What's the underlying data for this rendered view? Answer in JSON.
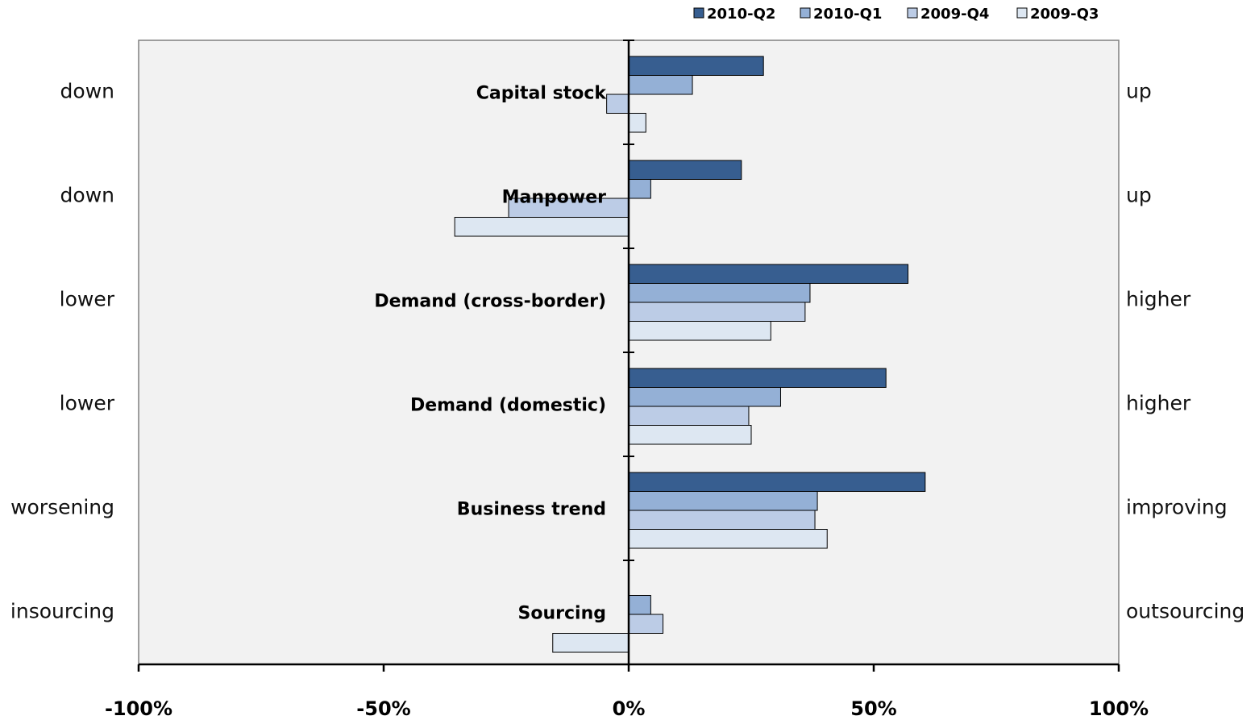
{
  "chart_data": {
    "type": "bar",
    "orientation": "horizontal",
    "categories": [
      "Capital stock",
      "Manpower",
      "Demand (cross-border)",
      "Demand (domestic)",
      "Business trend",
      "Sourcing"
    ],
    "left_labels": [
      "down",
      "down",
      "lower",
      "lower",
      "worsening",
      "insourcing"
    ],
    "right_labels": [
      "up",
      "up",
      "higher",
      "higher",
      "improving",
      "outsourcing"
    ],
    "series": [
      {
        "name": "2010-Q2",
        "color": "#375e90",
        "values": [
          27.5,
          23,
          57,
          52.5,
          60.5,
          0
        ]
      },
      {
        "name": "2010-Q1",
        "color": "#94b0d6",
        "values": [
          13,
          4.5,
          37,
          31,
          38.5,
          4.5
        ]
      },
      {
        "name": "2009-Q4",
        "color": "#bccce6",
        "values": [
          -4.5,
          -24.5,
          36,
          24.5,
          38,
          7
        ]
      },
      {
        "name": "2009-Q3",
        "color": "#dde7f2",
        "values": [
          3.5,
          -35.5,
          29,
          25,
          40.5,
          -15.5
        ]
      }
    ],
    "xlim": [
      -100,
      100
    ],
    "xticks": [
      -100,
      -50,
      0,
      50,
      100
    ],
    "xtick_labels": [
      "-100%",
      "-50%",
      "0%",
      "50%",
      "100%"
    ],
    "legend_position": "top-right",
    "grid": false,
    "plot_background": "#f2f2f2",
    "title": "",
    "xlabel": "",
    "ylabel": ""
  }
}
